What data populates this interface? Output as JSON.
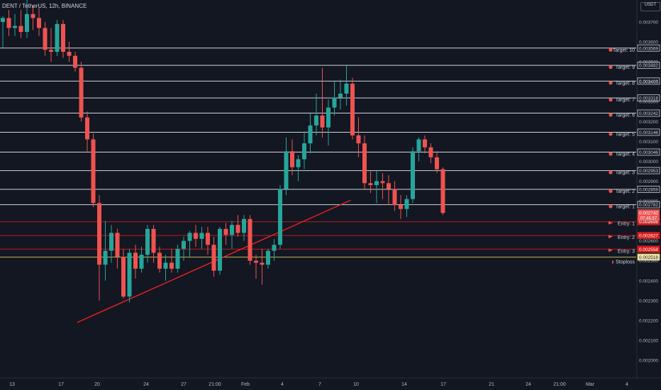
{
  "header": {
    "title": "DENT / TetherUS, 12h, BINANCE"
  },
  "currency_label": "USDT",
  "colors": {
    "background": "#131722",
    "up": "#26a69a",
    "down": "#ef5350",
    "target_line": "#d1d4dc",
    "entry_line": "#b71c1c",
    "stoploss_line": "#c9b458",
    "trendline": "#ff2020",
    "axis_text": "#b2b5be"
  },
  "chart_data": {
    "type": "candlestick",
    "title": "DENT / TetherUS, 12h, BINANCE",
    "yaxis": {
      "ticks": [
        "0.003700",
        "0.003600",
        "0.003500",
        "0.003400",
        "0.003300",
        "0.003200",
        "0.003100",
        "0.003000",
        "0.002900",
        "0.002800",
        "0.002700",
        "0.002600",
        "0.002500",
        "0.002400",
        "0.002300",
        "0.002200",
        "0.002100",
        "0.002000"
      ],
      "ylim": [
        0.00196,
        0.00386
      ],
      "position": "right"
    },
    "xaxis": {
      "ticks": [
        "13",
        "17",
        "20",
        "24",
        "27",
        "21:00",
        "Feb",
        "4",
        "7",
        "10",
        "14",
        "17",
        "21",
        "24",
        "21:00",
        "Mar",
        "4"
      ]
    },
    "price_levels": [
      {
        "name": "Target: 10",
        "value": "0.003569",
        "kind": "target",
        "icon": "target-icon"
      },
      {
        "name": "Target: 9",
        "value": "0.003482",
        "kind": "target",
        "icon": "target-icon"
      },
      {
        "name": "Target: 8",
        "value": "0.003403",
        "kind": "target",
        "icon": "target-icon"
      },
      {
        "name": "Target: 7",
        "value": "0.003318",
        "kind": "target",
        "icon": "target-icon"
      },
      {
        "name": "Target: 6",
        "value": "0.003242",
        "kind": "target",
        "icon": "target-icon"
      },
      {
        "name": "Target: 5",
        "value": "0.003146",
        "kind": "target",
        "icon": "target-icon"
      },
      {
        "name": "Target: 4",
        "value": "0.003046",
        "kind": "target",
        "icon": "target-icon"
      },
      {
        "name": "Target: 3",
        "value": "0.002953",
        "kind": "target",
        "icon": "target-icon"
      },
      {
        "name": "Target: 2",
        "value": "0.002859",
        "kind": "target",
        "icon": "target-icon"
      },
      {
        "name": "Target: 1",
        "value": "0.002782",
        "kind": "target",
        "icon": "target-icon"
      },
      {
        "name": "Entry: 1",
        "value": "0.002696",
        "kind": "entry",
        "icon": "flag-icon"
      },
      {
        "name": "Entry: 2",
        "value": "0.002627",
        "kind": "entry",
        "icon": "flag-icon"
      },
      {
        "name": "Entry: 3",
        "value": "0.002558",
        "kind": "entry",
        "icon": "flag-icon"
      },
      {
        "name": "Stoploss",
        "value": "0.002518",
        "kind": "stoploss",
        "icon": "fire-icon"
      }
    ],
    "current_price": {
      "value": "0.002742",
      "countdown": "07:46:57"
    },
    "trendline": {
      "from": [
        12,
        0.00219
      ],
      "to": [
        53,
        0.00279
      ]
    },
    "candles": [
      [
        0,
        0.0037,
        0.00373,
        0.00357,
        0.00372
      ],
      [
        1,
        0.00372,
        0.00376,
        0.00363,
        0.00367
      ],
      [
        2,
        0.00367,
        0.00374,
        0.00363,
        0.00368
      ],
      [
        3,
        0.00368,
        0.00376,
        0.00362,
        0.00365
      ],
      [
        4,
        0.00365,
        0.00385,
        0.00362,
        0.00374
      ],
      [
        5,
        0.00374,
        0.00378,
        0.00366,
        0.00372
      ],
      [
        6,
        0.00372,
        0.00377,
        0.00363,
        0.00367
      ],
      [
        7,
        0.00367,
        0.0037,
        0.00353,
        0.00356
      ],
      [
        8,
        0.00356,
        0.00367,
        0.0035,
        0.00355
      ],
      [
        9,
        0.00355,
        0.00371,
        0.00353,
        0.00369
      ],
      [
        10,
        0.00369,
        0.00371,
        0.00352,
        0.00355
      ],
      [
        11,
        0.00355,
        0.0036,
        0.0035,
        0.00353
      ],
      [
        12,
        0.00353,
        0.00355,
        0.00345,
        0.00347
      ],
      [
        13,
        0.00347,
        0.0035,
        0.0032,
        0.00322
      ],
      [
        14,
        0.00322,
        0.00325,
        0.00305,
        0.00311
      ],
      [
        15,
        0.00311,
        0.00314,
        0.00277,
        0.00279
      ],
      [
        16,
        0.00279,
        0.00283,
        0.0023,
        0.00248
      ],
      [
        17,
        0.00248,
        0.0027,
        0.0024,
        0.00255
      ],
      [
        18,
        0.00255,
        0.00268,
        0.00249,
        0.00264
      ],
      [
        19,
        0.00264,
        0.00266,
        0.00246,
        0.00252
      ],
      [
        20,
        0.00252,
        0.00256,
        0.00231,
        0.00232
      ],
      [
        21,
        0.00232,
        0.00256,
        0.00229,
        0.00254
      ],
      [
        22,
        0.00254,
        0.00258,
        0.00241,
        0.00246
      ],
      [
        23,
        0.00246,
        0.00257,
        0.00244,
        0.00253
      ],
      [
        24,
        0.00253,
        0.00268,
        0.00249,
        0.00266
      ],
      [
        25,
        0.00266,
        0.00268,
        0.00249,
        0.00254
      ],
      [
        26,
        0.00254,
        0.00257,
        0.00244,
        0.00246
      ],
      [
        27,
        0.00246,
        0.00253,
        0.0024,
        0.00249
      ],
      [
        28,
        0.00249,
        0.00256,
        0.00244,
        0.00246
      ],
      [
        29,
        0.00246,
        0.00258,
        0.00244,
        0.00256
      ],
      [
        30,
        0.00256,
        0.00262,
        0.0025,
        0.0026
      ],
      [
        31,
        0.0026,
        0.00265,
        0.00252,
        0.00264
      ],
      [
        32,
        0.00264,
        0.00268,
        0.00257,
        0.00261
      ],
      [
        33,
        0.00261,
        0.00267,
        0.00256,
        0.00264
      ],
      [
        34,
        0.00264,
        0.00267,
        0.00253,
        0.00258
      ],
      [
        35,
        0.00258,
        0.00262,
        0.00242,
        0.00245
      ],
      [
        36,
        0.00245,
        0.00267,
        0.00243,
        0.00266
      ],
      [
        37,
        0.00266,
        0.00269,
        0.00258,
        0.00263
      ],
      [
        38,
        0.00263,
        0.0027,
        0.00256,
        0.00268
      ],
      [
        39,
        0.00268,
        0.00273,
        0.00262,
        0.00264
      ],
      [
        40,
        0.00264,
        0.00273,
        0.0026,
        0.00271
      ],
      [
        41,
        0.00271,
        0.00273,
        0.00248,
        0.0025
      ],
      [
        42,
        0.0025,
        0.00253,
        0.00241,
        0.00249
      ],
      [
        43,
        0.00249,
        0.00256,
        0.00238,
        0.00248
      ],
      [
        44,
        0.00248,
        0.00256,
        0.00246,
        0.00255
      ],
      [
        45,
        0.00255,
        0.00261,
        0.0025,
        0.00258
      ],
      [
        46,
        0.00258,
        0.00288,
        0.00256,
        0.00286
      ],
      [
        47,
        0.00286,
        0.00312,
        0.00283,
        0.00305
      ],
      [
        48,
        0.00305,
        0.00311,
        0.00293,
        0.00297
      ],
      [
        49,
        0.00297,
        0.00303,
        0.0029,
        0.00301
      ],
      [
        50,
        0.00301,
        0.00315,
        0.00296,
        0.00309
      ],
      [
        51,
        0.00309,
        0.00324,
        0.00304,
        0.00318
      ],
      [
        52,
        0.00318,
        0.00334,
        0.00313,
        0.00323
      ],
      [
        53,
        0.00323,
        0.00347,
        0.00312,
        0.00317
      ],
      [
        54,
        0.00317,
        0.00331,
        0.00308,
        0.00327
      ],
      [
        55,
        0.00327,
        0.0034,
        0.00323,
        0.00332
      ],
      [
        56,
        0.00332,
        0.00341,
        0.00326,
        0.00334
      ],
      [
        57,
        0.00334,
        0.00348,
        0.00328,
        0.00339
      ],
      [
        58,
        0.00339,
        0.00342,
        0.00311,
        0.00313
      ],
      [
        59,
        0.00313,
        0.00322,
        0.00302,
        0.00309
      ],
      [
        60,
        0.00309,
        0.00313,
        0.00286,
        0.00289
      ],
      [
        61,
        0.00289,
        0.00295,
        0.00284,
        0.00288
      ],
      [
        62,
        0.00288,
        0.00295,
        0.00279,
        0.0029
      ],
      [
        63,
        0.0029,
        0.00294,
        0.00281,
        0.00289
      ],
      [
        64,
        0.00289,
        0.00293,
        0.00278,
        0.00286
      ],
      [
        65,
        0.00286,
        0.0029,
        0.00275,
        0.00278
      ],
      [
        66,
        0.00278,
        0.00283,
        0.00271,
        0.00276
      ],
      [
        67,
        0.00276,
        0.00283,
        0.00272,
        0.00281
      ],
      [
        68,
        0.00281,
        0.00307,
        0.00279,
        0.00305
      ],
      [
        69,
        0.00305,
        0.00312,
        0.003,
        0.00311
      ],
      [
        70,
        0.00311,
        0.00313,
        0.00304,
        0.00307
      ],
      [
        71,
        0.00307,
        0.00309,
        0.00299,
        0.00302
      ],
      [
        72,
        0.00302,
        0.00305,
        0.00294,
        0.00296
      ],
      [
        73,
        0.00296,
        0.00297,
        0.00273,
        0.00274
      ]
    ]
  }
}
